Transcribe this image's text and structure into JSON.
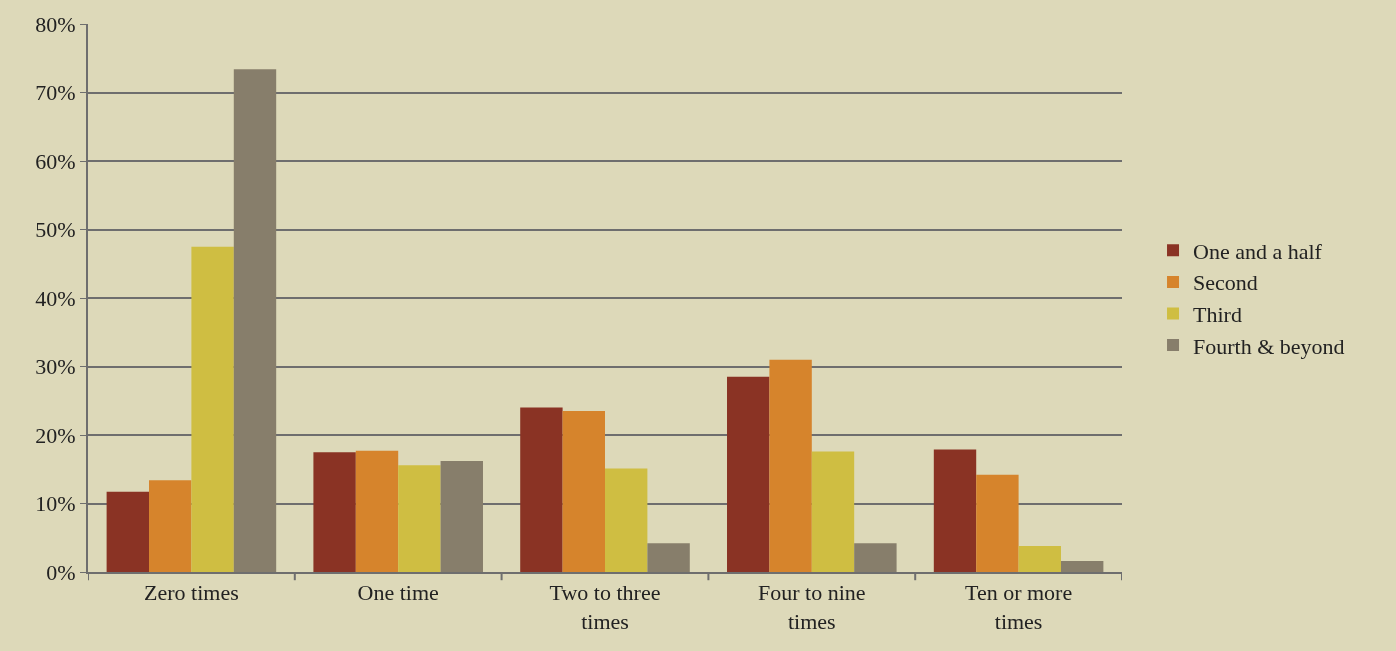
{
  "chart_data": {
    "type": "bar",
    "categories": [
      "Zero times",
      "One time",
      "Two to three times",
      "Four to nine times",
      "Ten or more times"
    ],
    "series": [
      {
        "name": "One and a half",
        "color": "#8a3324",
        "values": [
          11.7,
          17.5,
          24.0,
          28.5,
          17.9
        ]
      },
      {
        "name": "Second",
        "color": "#d6842c",
        "values": [
          13.4,
          17.7,
          23.5,
          31.0,
          14.2
        ]
      },
      {
        "name": "Third",
        "color": "#cfbe42",
        "values": [
          47.5,
          15.6,
          15.1,
          17.6,
          3.8
        ]
      },
      {
        "name": "Fourth & beyond",
        "color": "#877e6b",
        "values": [
          73.4,
          16.2,
          4.2,
          4.2,
          1.6
        ]
      }
    ],
    "ylim": [
      0,
      80
    ],
    "yticks": [
      {
        "value": 0,
        "label": "0%"
      },
      {
        "value": 10,
        "label": "10%"
      },
      {
        "value": 20,
        "label": "20%"
      },
      {
        "value": 30,
        "label": "30%"
      },
      {
        "value": 40,
        "label": "40%"
      },
      {
        "value": 50,
        "label": "50%"
      },
      {
        "value": 60,
        "label": "60%"
      },
      {
        "value": 70,
        "label": "70%"
      },
      {
        "value": 80,
        "label": "80%"
      }
    ],
    "grid": "y",
    "legend": "right"
  }
}
